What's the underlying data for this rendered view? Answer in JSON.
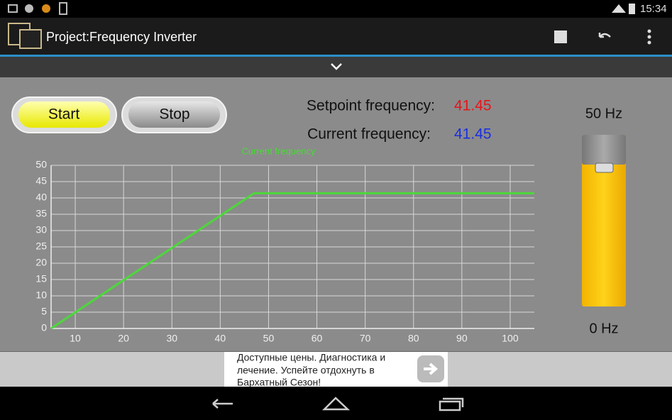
{
  "status_bar": {
    "time": "15:34"
  },
  "app_bar": {
    "title": "Project:Frequency Inverter"
  },
  "buttons": {
    "start": "Start",
    "stop": "Stop"
  },
  "readouts": {
    "setpoint_label": "Setpoint frequency:",
    "setpoint_value": "41.45",
    "current_label": "Current frequency:",
    "current_value": "41.45"
  },
  "slider": {
    "max_label": "50 Hz",
    "min_label": "0 Hz"
  },
  "ad": {
    "line1": "Доступные цены. Диагностика и",
    "line2": "лечение. Успейте отдохнуть в",
    "line3": "Бархатный Сезон!"
  },
  "chart_data": {
    "type": "line",
    "series": [
      {
        "name": "Current frequency",
        "color": "#4cd83a",
        "x": [
          5,
          47,
          105
        ],
        "values": [
          0,
          41.45,
          41.45
        ]
      }
    ],
    "xlim": [
      5,
      105
    ],
    "ylim": [
      0,
      50
    ],
    "xticks": [
      10,
      20,
      30,
      40,
      50,
      60,
      70,
      80,
      90,
      100
    ],
    "yticks": [
      0,
      5,
      10,
      15,
      20,
      25,
      30,
      35,
      40,
      45,
      50
    ],
    "grid": true
  }
}
